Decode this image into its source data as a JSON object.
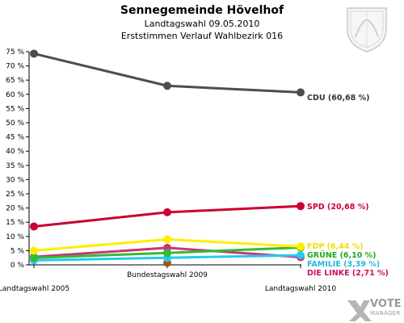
{
  "header": {
    "title": "Sennegemeinde Hövelhof",
    "subtitle1": "Landtagswahl 09.05.2010",
    "subtitle2": "Erststimmen Verlauf Wahlbezirk 016"
  },
  "logo": {
    "name": "votemanager-logo",
    "text1": "VOTE",
    "text2": "MANAGER"
  },
  "crest": {
    "icon": "coat-of-arms-icon"
  },
  "chart_data": {
    "type": "line",
    "categories": [
      "Landtagswahl 2005",
      "Bundestagswahl 2009",
      "Landtagswahl 2010"
    ],
    "ylim": [
      0,
      75
    ],
    "yticks": [
      "0 %",
      "5 %",
      "10 %",
      "15 %",
      "20 %",
      "25 %",
      "30 %",
      "35 %",
      "40 %",
      "45 %",
      "50 %",
      "55 %",
      "60 %",
      "65 %",
      "70 %",
      "75 %"
    ],
    "grid": false,
    "series": [
      {
        "name": "CDU",
        "label": "CDU (60,68 %)",
        "color": "#4d4d4d",
        "labelColor": "#333333",
        "values": [
          74.3,
          63.0,
          60.68
        ]
      },
      {
        "name": "SPD",
        "label": "SPD (20,68 %)",
        "color": "#cc0033",
        "labelColor": "#cc0033",
        "values": [
          13.5,
          18.5,
          20.68
        ]
      },
      {
        "name": "FDP",
        "label": "FDP (6,44 %)",
        "color": "#ffee00",
        "labelColor": "#f0e000",
        "values": [
          5.0,
          9.0,
          6.44
        ]
      },
      {
        "name": "GRÜNE",
        "label": "GRÜNE (6,10 %)",
        "color": "#33bb33",
        "labelColor": "#22aa22",
        "values": [
          2.5,
          4.2,
          6.1
        ]
      },
      {
        "name": "FAMILIE",
        "label": "FAMILIE (3,39 %)",
        "color": "#22ccee",
        "labelColor": "#22bbdd",
        "values": [
          1.6,
          2.5,
          3.39
        ]
      },
      {
        "name": "DIE LINKE",
        "label": "DIE LINKE (2,71 %)",
        "color": "#cc3377",
        "labelColor": "#cc1166",
        "values": [
          2.8,
          6.0,
          2.71
        ]
      },
      {
        "name": "",
        "label": "",
        "color": "#aa5511",
        "labelColor": "#aa5511",
        "values": [
          null,
          0.7,
          null
        ]
      }
    ]
  }
}
